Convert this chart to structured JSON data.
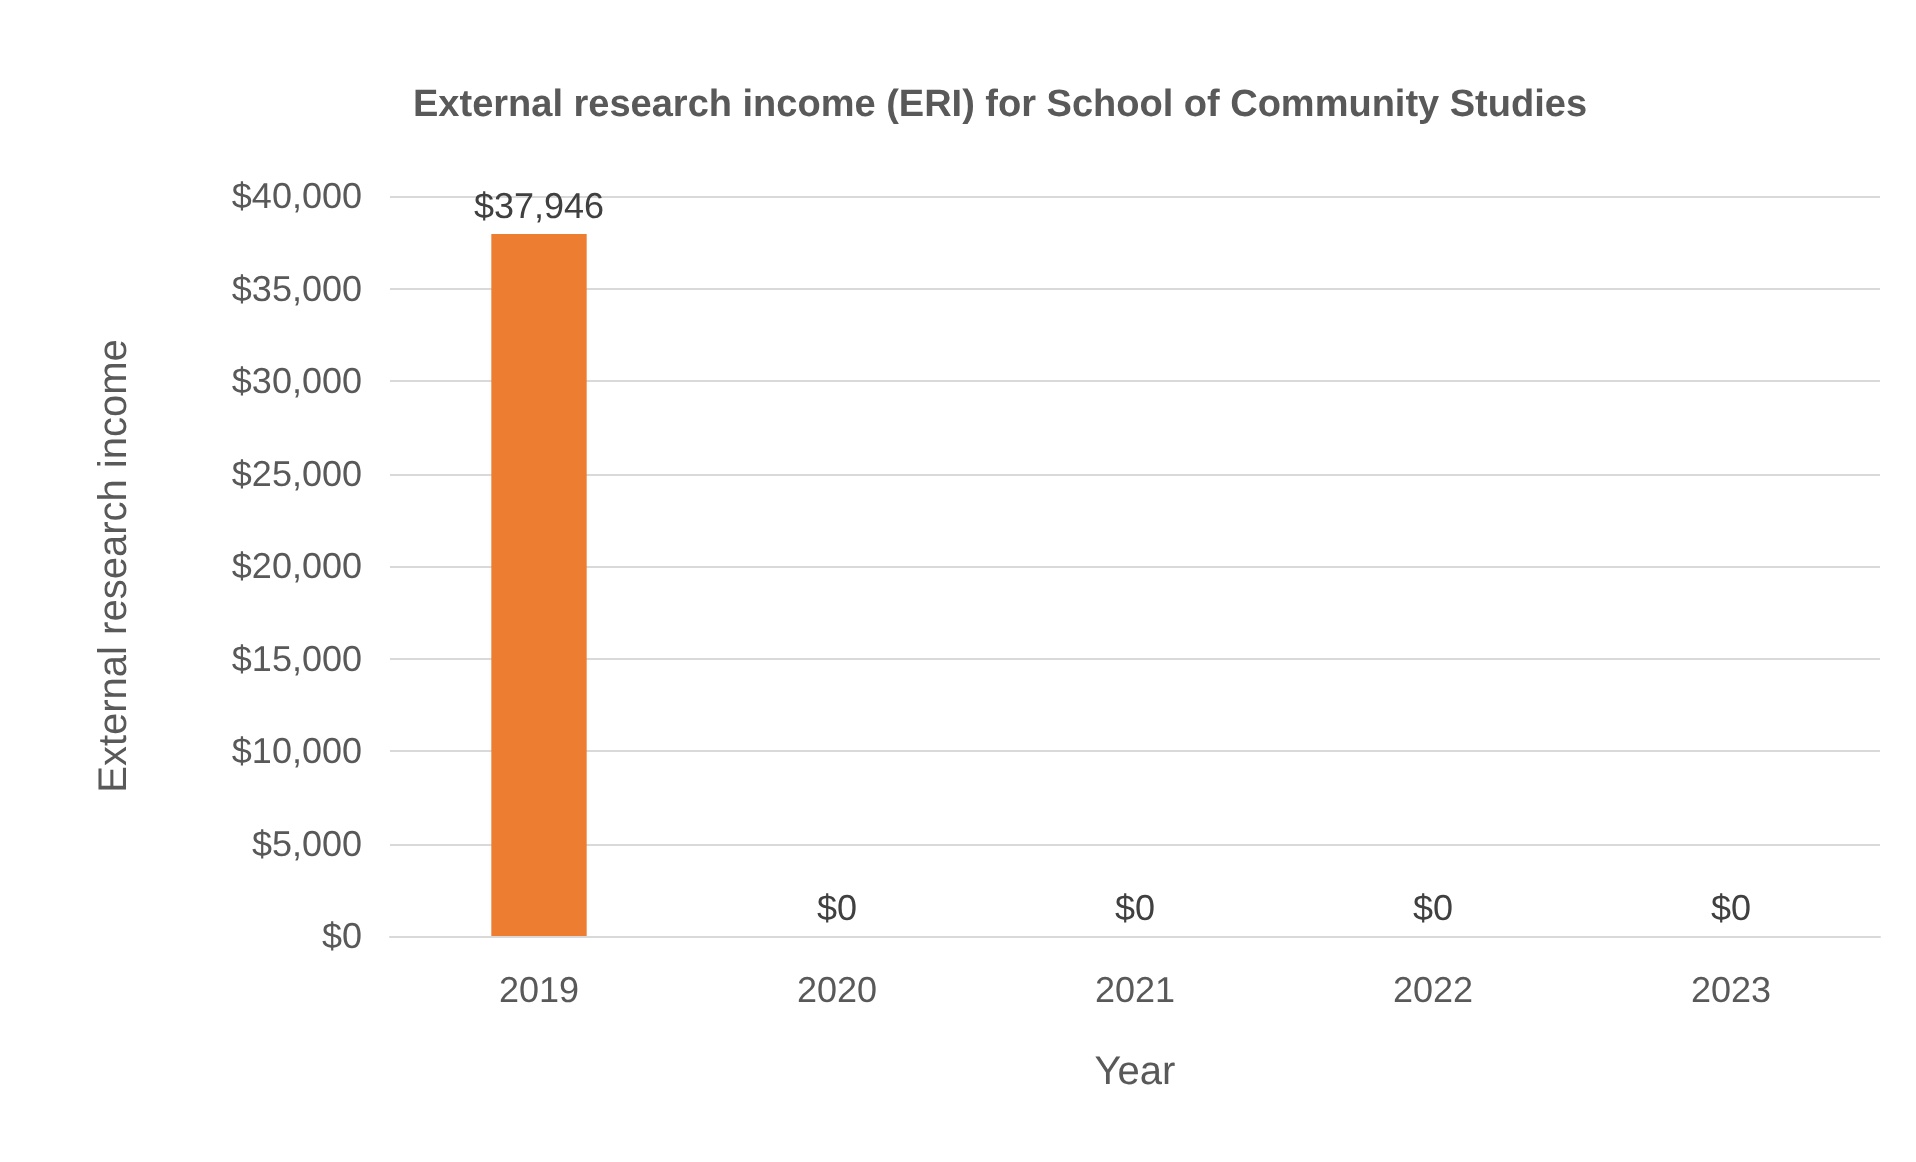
{
  "chart_data": {
    "type": "bar",
    "title": "External research income (ERI) for School of Community Studies",
    "xlabel": "Year",
    "ylabel": "External research income",
    "categories": [
      "2019",
      "2020",
      "2021",
      "2022",
      "2023"
    ],
    "values": [
      37946,
      0,
      0,
      0,
      0
    ],
    "color": "#ed7d31",
    "value_labels": [
      "$37,946",
      "$0",
      "$0",
      "$0",
      "$0"
    ],
    "ylim": [
      0,
      40000
    ],
    "yticks": [
      {
        "value": 0,
        "label": "$0"
      },
      {
        "value": 5000,
        "label": "$5,000"
      },
      {
        "value": 10000,
        "label": "$10,000"
      },
      {
        "value": 15000,
        "label": "$15,000"
      },
      {
        "value": 20000,
        "label": "$20,000"
      },
      {
        "value": 25000,
        "label": "$25,000"
      },
      {
        "value": 30000,
        "label": "$30,000"
      },
      {
        "value": 35000,
        "label": "$35,000"
      },
      {
        "value": 40000,
        "label": "$40,000"
      }
    ],
    "grid": "y"
  }
}
